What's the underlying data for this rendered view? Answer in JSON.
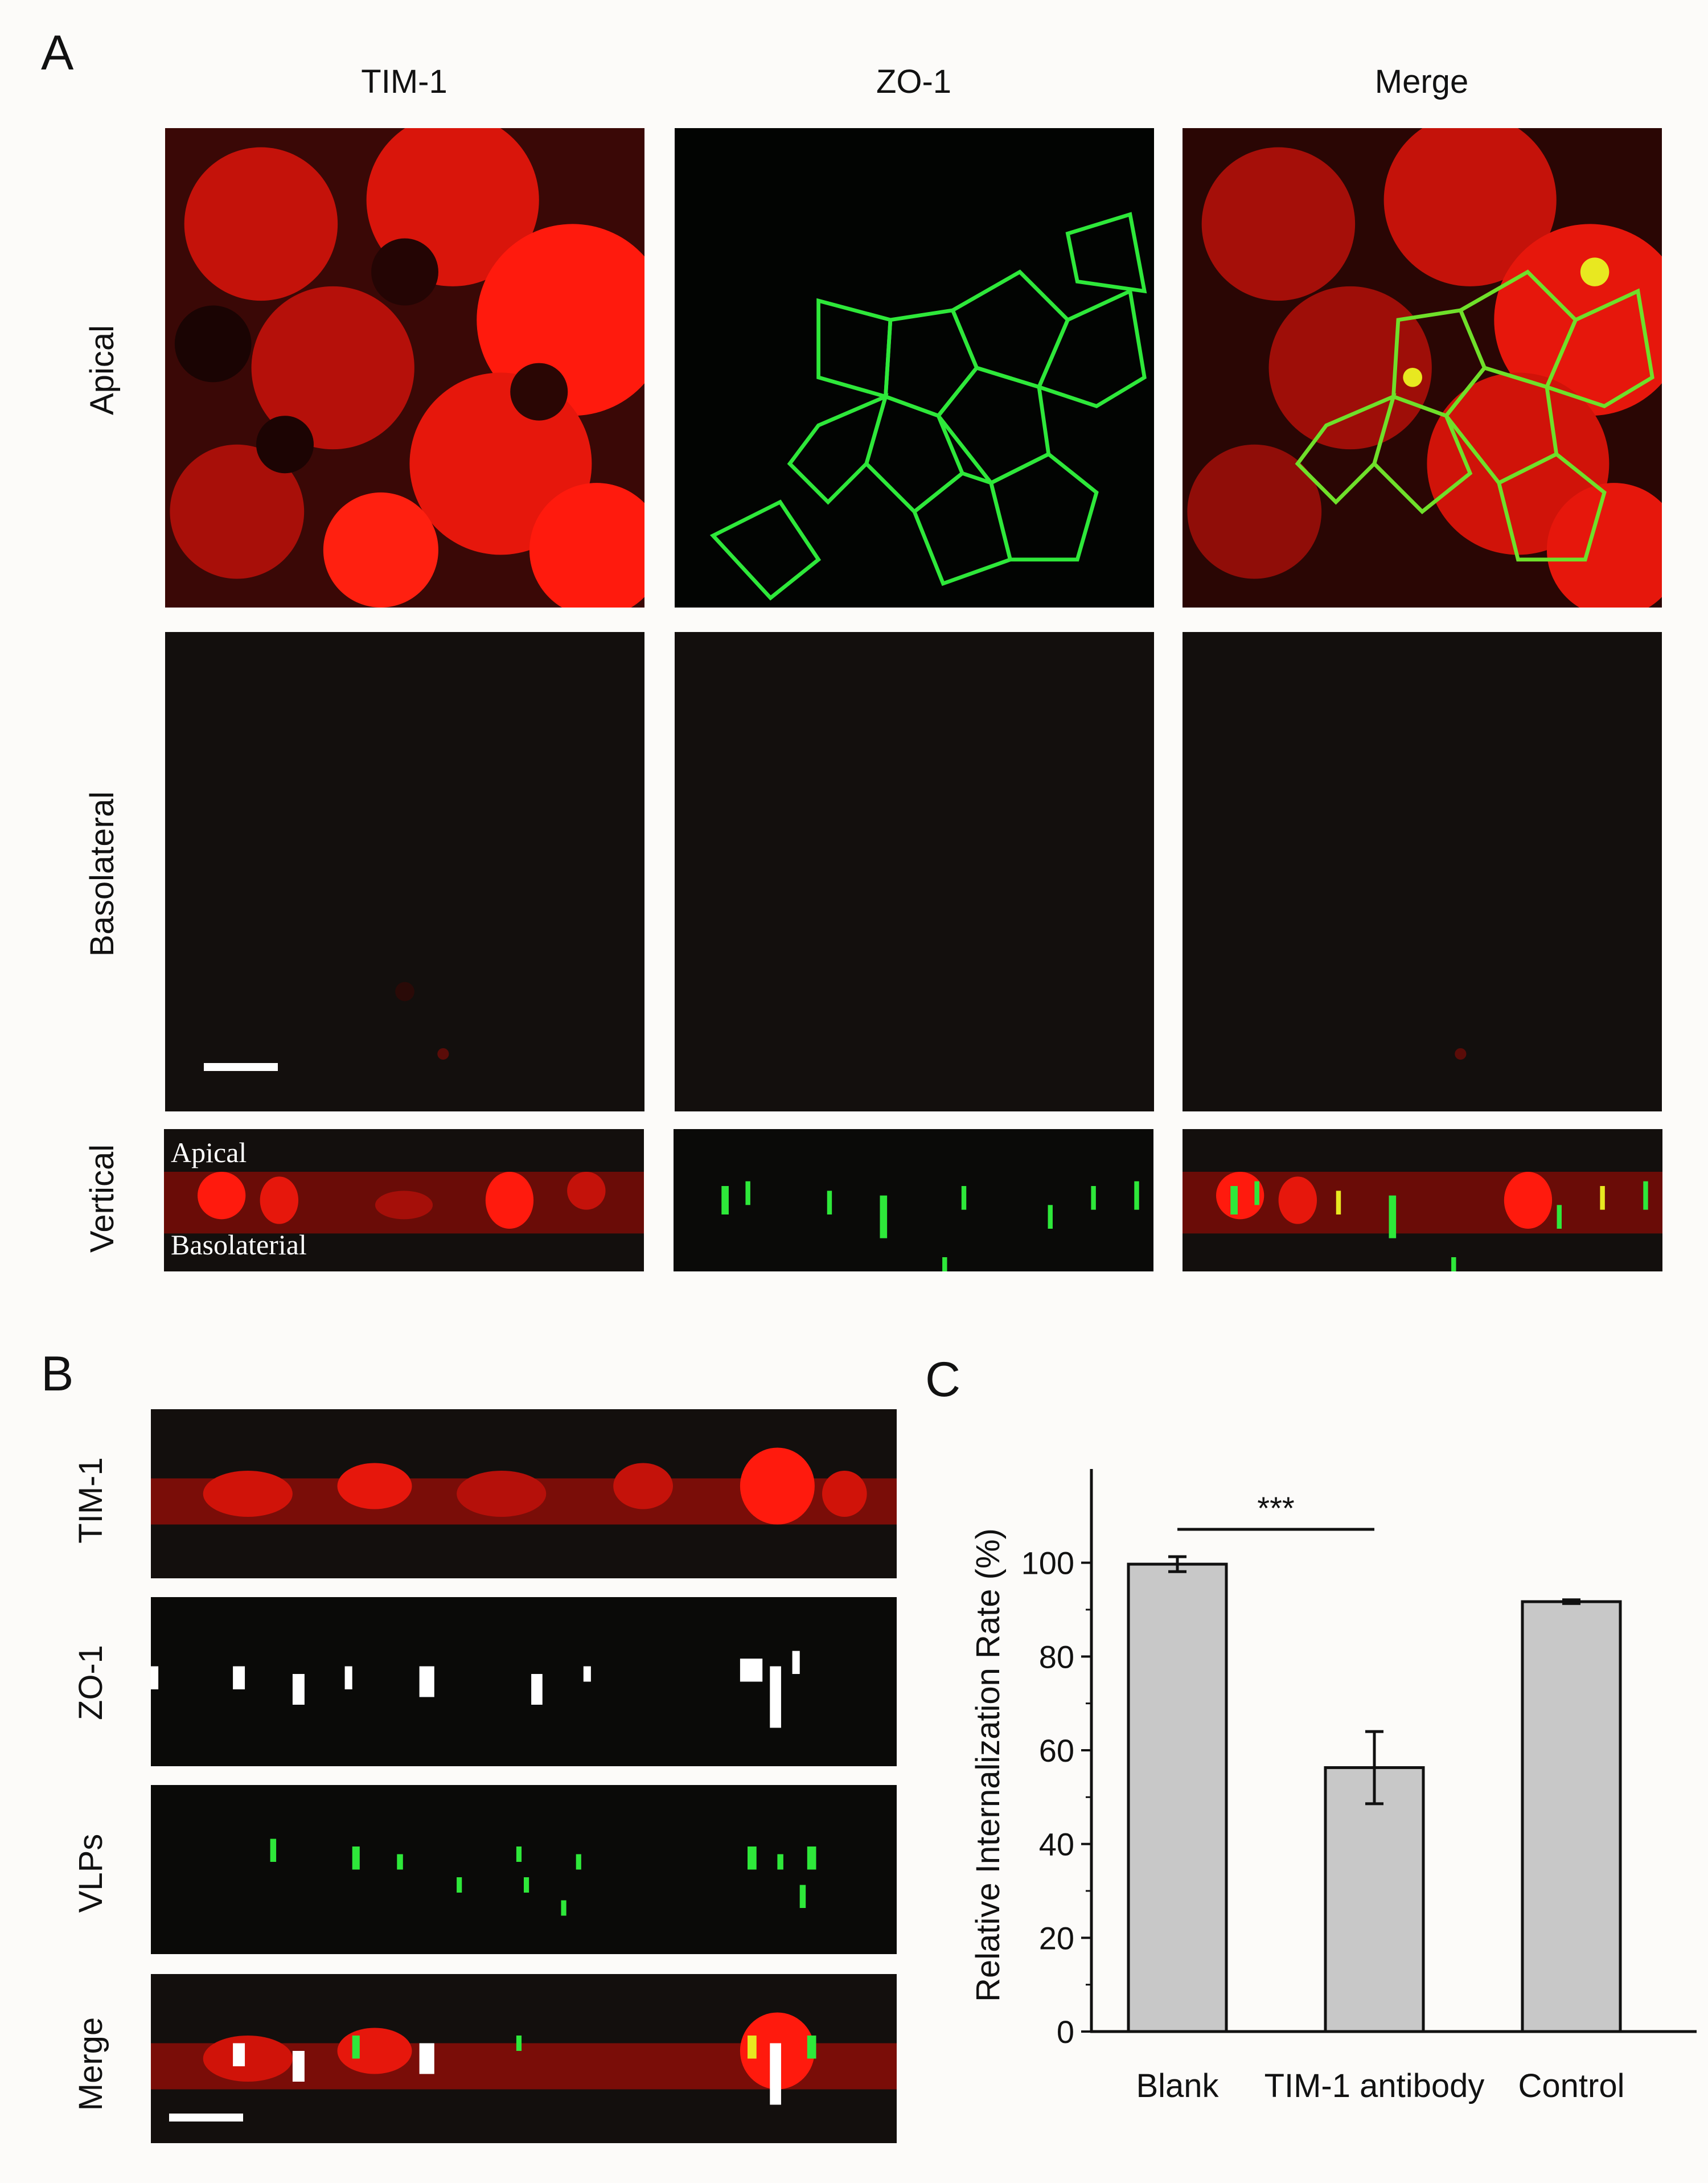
{
  "panels": {
    "A": "A",
    "B": "B",
    "C": "C"
  },
  "panelA": {
    "col_headers": [
      "TIM-1",
      "ZO-1",
      "Merge"
    ],
    "row_headers": [
      "Apical",
      "Basolateral",
      "Vertical"
    ],
    "overlay_top": "Apical",
    "overlay_bottom": "Basolaterial"
  },
  "panelB": {
    "row_headers": [
      "TIM-1",
      "ZO-1",
      "VLPs",
      "Merge"
    ]
  },
  "colors": {
    "tim1": "#ff1a0d",
    "zo1": "#2ee83a",
    "zo1_white": "#ffffff",
    "bar_fill": "#c8c8c8",
    "background": "#fcfbf9",
    "image_bg": "#130f0d"
  },
  "chart_data": {
    "type": "bar",
    "categories": [
      "Blank",
      "TIM-1 antibody",
      "Control"
    ],
    "values": [
      99.7,
      56.3,
      91.7
    ],
    "errors": [
      1.6,
      7.7,
      0.4
    ],
    "ylabel": "Relative Internalization Rate (%)",
    "ylim": [
      0,
      120
    ],
    "yticks": [
      0,
      20,
      40,
      60,
      80,
      100
    ],
    "significance": {
      "from": "Blank",
      "to": "TIM-1 antibody",
      "label": "***"
    },
    "grid": false
  }
}
